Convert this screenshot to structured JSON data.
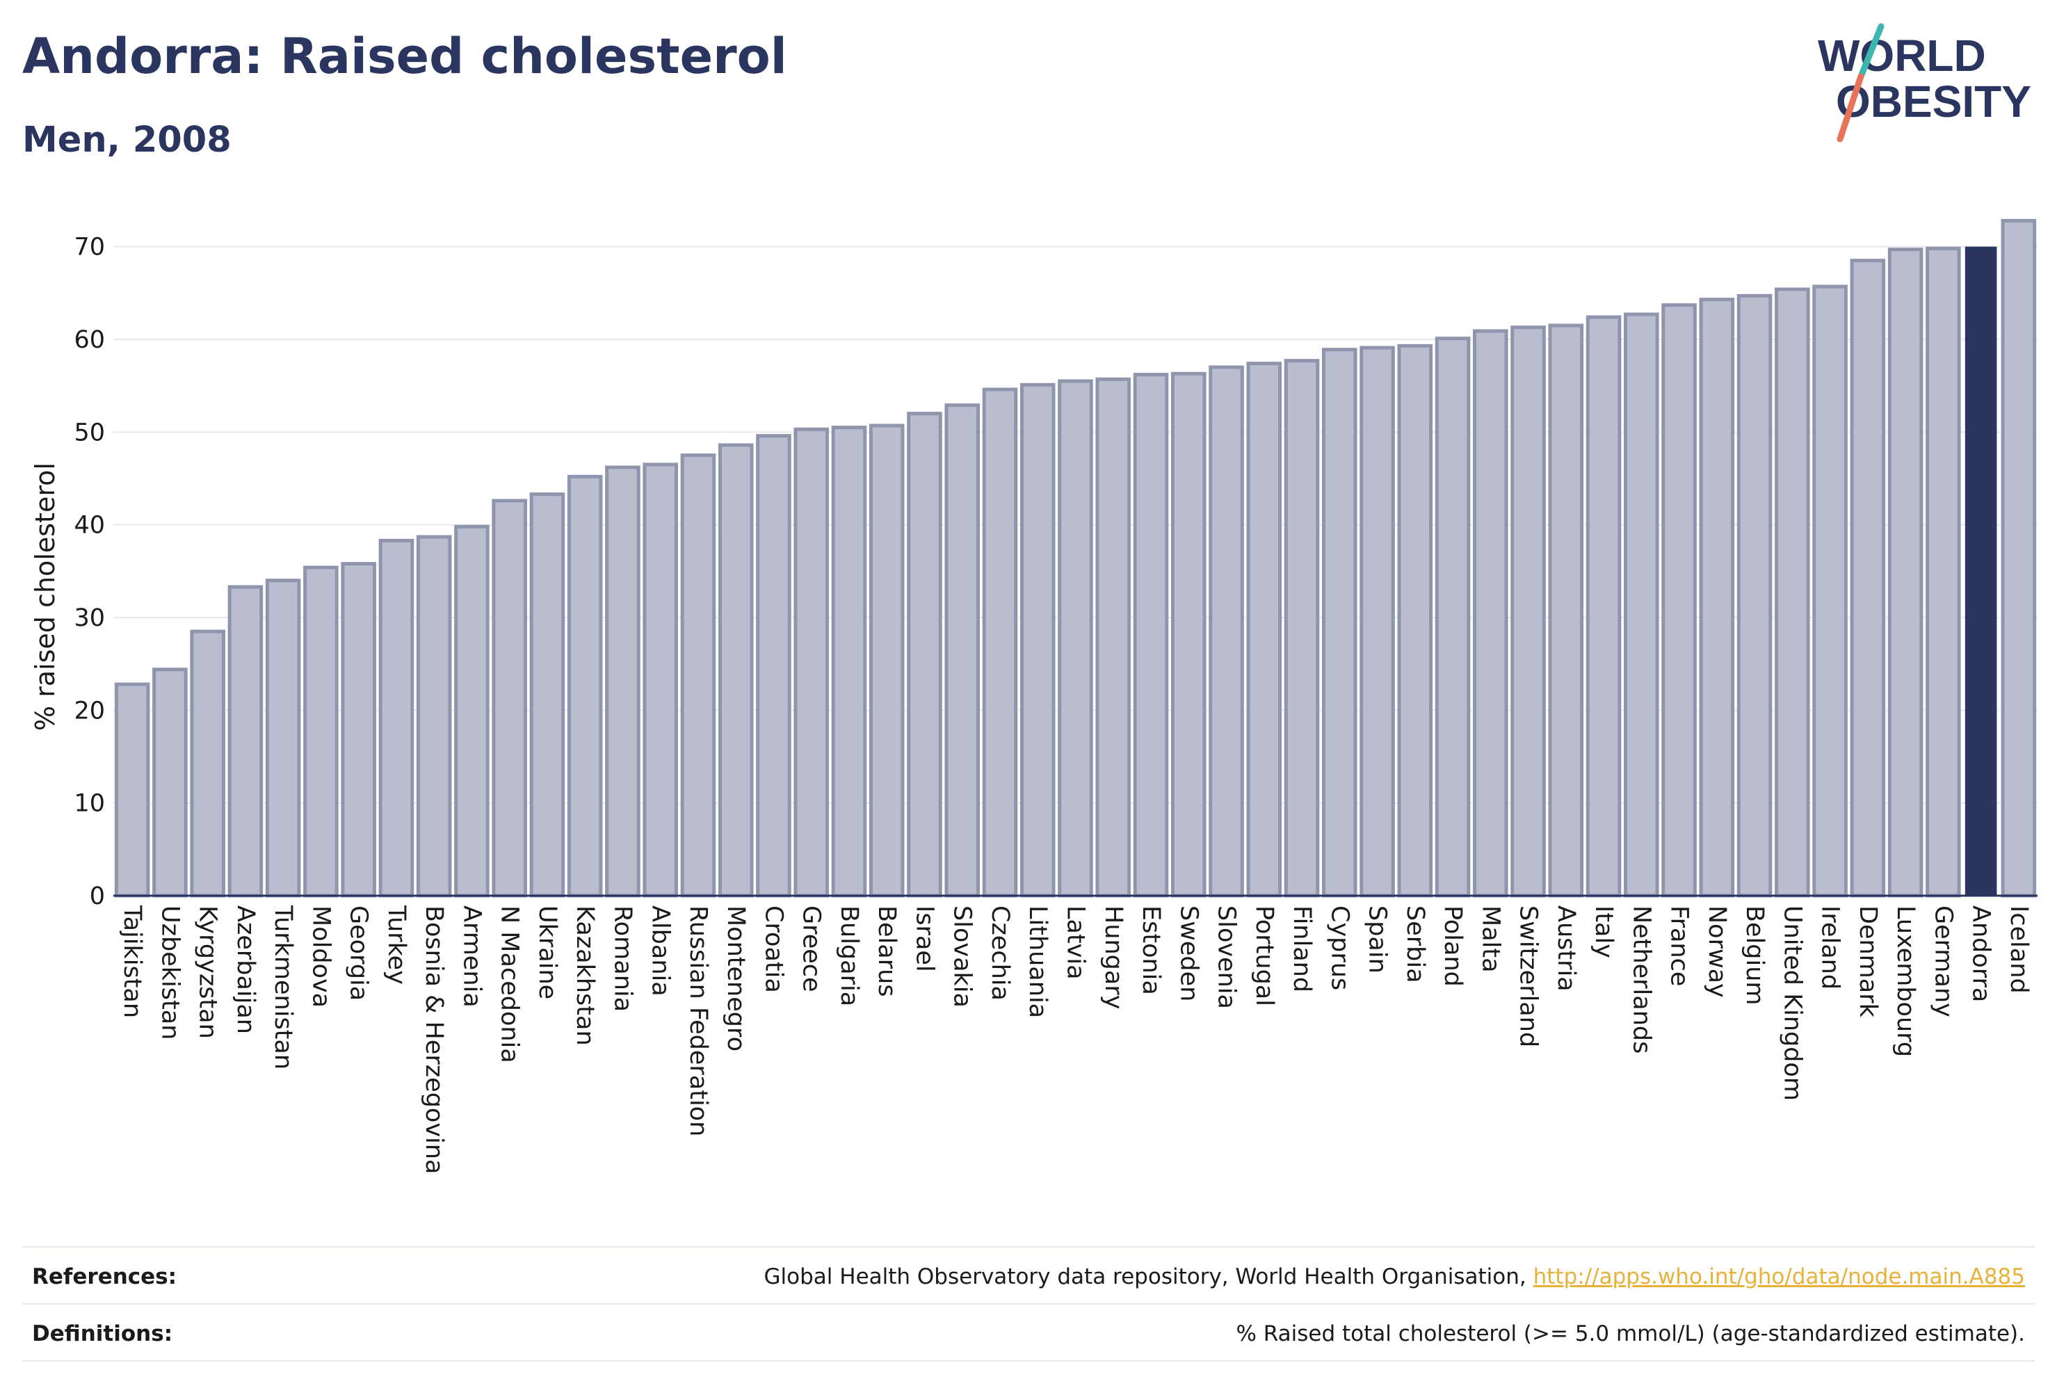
{
  "header": {
    "title": "Andorra: Raised cholesterol",
    "subtitle": "Men, 2008"
  },
  "logo": {
    "line1": "WORLD",
    "line2": "OBESITY",
    "colors": {
      "text": "#2a3560",
      "slash_red": "#e8735a",
      "slash_teal": "#3bb6b0"
    }
  },
  "chart_data": {
    "type": "bar",
    "ylabel": "% raised cholesterol",
    "xlabel": "",
    "ylim": [
      0,
      75
    ],
    "yticks": [
      0,
      10,
      20,
      30,
      40,
      50,
      60,
      70
    ],
    "grid": true,
    "highlight": "Andorra",
    "colors": {
      "bar": "#b9bdce",
      "bar_edge": "#8f95ad",
      "highlight": "#2a3560",
      "grid": "#e6e8ee",
      "axis": "#2a3560"
    },
    "categories": [
      "Tajikistan",
      "Uzbekistan",
      "Kyrgyzstan",
      "Azerbaijan",
      "Turkmenistan",
      "Moldova",
      "Georgia",
      "Turkey",
      "Bosnia & Herzegovina",
      "Armenia",
      "N Macedonia",
      "Ukraine",
      "Kazakhstan",
      "Romania",
      "Albania",
      "Russian Federation",
      "Montenegro",
      "Croatia",
      "Greece",
      "Bulgaria",
      "Belarus",
      "Israel",
      "Slovakia",
      "Czechia",
      "Lithuania",
      "Latvia",
      "Hungary",
      "Estonia",
      "Sweden",
      "Slovenia",
      "Portugal",
      "Finland",
      "Cyprus",
      "Spain",
      "Serbia",
      "Poland",
      "Malta",
      "Switzerland",
      "Austria",
      "Italy",
      "Netherlands",
      "France",
      "Norway",
      "Belgium",
      "United Kingdom",
      "Ireland",
      "Denmark",
      "Luxembourg",
      "Germany",
      "Andorra",
      "Iceland"
    ],
    "values": [
      22.8,
      24.4,
      28.5,
      33.3,
      34.0,
      35.4,
      35.8,
      38.3,
      38.7,
      39.8,
      42.6,
      43.3,
      45.2,
      46.2,
      46.5,
      47.5,
      48.6,
      49.6,
      50.3,
      50.5,
      50.7,
      52.0,
      52.9,
      54.6,
      55.1,
      55.5,
      55.7,
      56.2,
      56.3,
      57.0,
      57.4,
      57.7,
      58.9,
      59.1,
      59.3,
      60.1,
      60.9,
      61.3,
      61.5,
      62.4,
      62.7,
      63.7,
      64.3,
      64.7,
      65.4,
      65.7,
      68.5,
      69.7,
      69.8,
      70.0,
      72.8
    ]
  },
  "footer": {
    "references_label": "References:",
    "references_text": "Global Health Observatory data repository, World Health Organisation, ",
    "references_link": "http://apps.who.int/gho/data/node.main.A885",
    "definitions_label": "Definitions:",
    "definitions_text": "% Raised total cholesterol (>= 5.0 mmol/L) (age-standardized estimate)."
  }
}
